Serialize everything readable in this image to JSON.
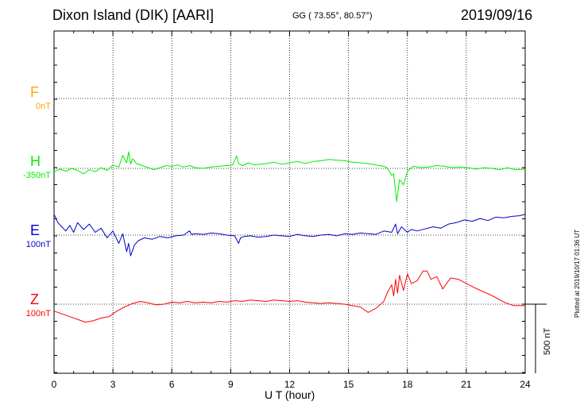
{
  "header": {
    "station": "Dixon Island (DIK)  [AARI]",
    "coords": "GG ( 73.55°,  80.57°)",
    "date": "2019/09/16"
  },
  "plotted_note": "Plotted at 2019/10/17 01:36 UT",
  "scale_label": "500 nT",
  "chart_data": {
    "type": "line",
    "xlabel": "U T (hour)",
    "xlim": [
      0,
      24
    ],
    "xticks": [
      0,
      3,
      6,
      9,
      12,
      15,
      18,
      21,
      24
    ],
    "grid": true,
    "series": [
      {
        "name": "F",
        "baseline_label": "0nT",
        "color": "#ffa500",
        "values": []
      },
      {
        "name": "H",
        "baseline_label": "-350nT",
        "color": "#00ee00",
        "x": [
          0,
          0.3,
          0.6,
          0.9,
          1.2,
          1.5,
          1.8,
          2.1,
          2.4,
          2.7,
          3.0,
          3.3,
          3.5,
          3.7,
          3.8,
          3.9,
          4.0,
          4.2,
          4.5,
          4.8,
          5.1,
          5.4,
          5.7,
          6.0,
          6.3,
          6.6,
          6.9,
          7.2,
          7.6,
          8.0,
          8.4,
          8.8,
          9.1,
          9.3,
          9.4,
          9.6,
          9.9,
          10.2,
          10.5,
          10.8,
          11.2,
          11.6,
          12.0,
          12.4,
          12.8,
          13.2,
          13.6,
          14.0,
          14.4,
          14.8,
          15.2,
          15.6,
          16.0,
          16.4,
          16.8,
          17.0,
          17.2,
          17.3,
          17.45,
          17.6,
          17.8,
          18.0,
          18.3,
          18.7,
          19.1,
          19.5,
          19.9,
          20.3,
          20.7,
          21.1,
          21.5,
          21.9,
          22.3,
          22.7,
          23.1,
          23.5,
          24.0
        ],
        "y": [
          -25,
          -5,
          -20,
          0,
          -15,
          -40,
          -10,
          -25,
          5,
          -15,
          25,
          10,
          95,
          40,
          120,
          30,
          70,
          35,
          20,
          5,
          -10,
          5,
          20,
          15,
          25,
          10,
          20,
          5,
          0,
          10,
          15,
          20,
          25,
          90,
          35,
          20,
          40,
          25,
          30,
          35,
          45,
          30,
          40,
          50,
          35,
          50,
          55,
          65,
          60,
          55,
          45,
          40,
          35,
          25,
          15,
          0,
          -50,
          -40,
          -240,
          -80,
          -120,
          -20,
          15,
          5,
          10,
          20,
          15,
          5,
          10,
          5,
          -5,
          5,
          0,
          -10,
          5,
          -10,
          -5
        ]
      },
      {
        "name": "E",
        "baseline_label": "100nT",
        "color": "#0000cc",
        "x": [
          0,
          0.2,
          0.4,
          0.6,
          0.8,
          1.0,
          1.2,
          1.5,
          1.8,
          2.1,
          2.4,
          2.7,
          3.0,
          3.3,
          3.5,
          3.7,
          3.8,
          3.9,
          4.1,
          4.3,
          4.6,
          5.0,
          5.4,
          5.8,
          6.2,
          6.6,
          6.9,
          7.0,
          7.2,
          7.6,
          8.0,
          8.4,
          8.8,
          9.2,
          9.4,
          9.5,
          9.7,
          10.0,
          10.4,
          10.8,
          11.2,
          11.6,
          12.0,
          12.4,
          12.8,
          13.2,
          13.6,
          14.0,
          14.4,
          14.8,
          15.2,
          15.6,
          16.0,
          16.4,
          16.8,
          17.2,
          17.4,
          17.5,
          17.7,
          18.0,
          18.2,
          18.5,
          18.9,
          19.3,
          19.7,
          20.1,
          20.5,
          20.9,
          21.3,
          21.7,
          22.1,
          22.5,
          22.9,
          23.3,
          23.7,
          24.0
        ],
        "y": [
          150,
          90,
          60,
          30,
          70,
          20,
          90,
          40,
          80,
          20,
          50,
          -20,
          30,
          -60,
          10,
          -120,
          -60,
          -150,
          -70,
          -40,
          -20,
          -30,
          -10,
          -20,
          -5,
          0,
          30,
          5,
          10,
          5,
          15,
          10,
          0,
          -5,
          -60,
          -20,
          -10,
          -5,
          -15,
          -10,
          0,
          -5,
          -10,
          5,
          -5,
          -10,
          0,
          5,
          -5,
          10,
          5,
          15,
          10,
          5,
          30,
          20,
          80,
          10,
          60,
          20,
          40,
          30,
          45,
          60,
          50,
          80,
          90,
          110,
          100,
          120,
          105,
          130,
          125,
          135,
          140,
          150
        ]
      },
      {
        "name": "Z",
        "baseline_label": "100nT",
        "color": "#ff0000",
        "x": [
          0,
          0.4,
          0.8,
          1.2,
          1.6,
          2.0,
          2.4,
          2.8,
          3.2,
          3.6,
          4.0,
          4.4,
          4.8,
          5.2,
          5.6,
          6.0,
          6.4,
          6.8,
          7.2,
          7.6,
          8.0,
          8.4,
          8.8,
          9.2,
          9.6,
          10.0,
          10.4,
          10.8,
          11.2,
          11.6,
          12.0,
          12.4,
          12.8,
          13.2,
          13.6,
          14.0,
          14.4,
          14.8,
          15.2,
          15.6,
          16.0,
          16.4,
          16.8,
          17.0,
          17.2,
          17.3,
          17.4,
          17.5,
          17.6,
          17.8,
          18.0,
          18.2,
          18.5,
          18.8,
          19.0,
          19.2,
          19.5,
          19.8,
          20.2,
          20.6,
          21.0,
          21.4,
          21.8,
          22.2,
          22.6,
          23.0,
          23.4,
          24.0
        ],
        "y": [
          -50,
          -70,
          -90,
          -110,
          -130,
          -120,
          -100,
          -90,
          -50,
          -20,
          5,
          20,
          10,
          -5,
          0,
          15,
          10,
          20,
          10,
          15,
          10,
          20,
          15,
          25,
          20,
          30,
          25,
          20,
          30,
          25,
          20,
          25,
          15,
          10,
          5,
          10,
          5,
          0,
          -10,
          -20,
          -60,
          -30,
          20,
          90,
          140,
          60,
          180,
          80,
          210,
          100,
          220,
          150,
          170,
          240,
          240,
          180,
          200,
          110,
          190,
          180,
          150,
          120,
          95,
          70,
          40,
          10,
          -10,
          -10
        ]
      }
    ],
    "scale_nT": 500
  }
}
